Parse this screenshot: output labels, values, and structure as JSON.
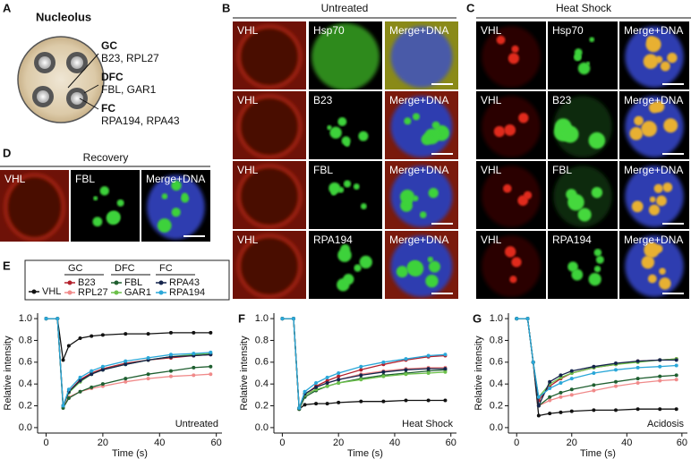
{
  "panel_a": {
    "label": "A",
    "title": "Nucleolus",
    "regions": [
      {
        "name": "GC",
        "proteins": "B23, RPL27"
      },
      {
        "name": "DFC",
        "proteins": "FBL, GAR1"
      },
      {
        "name": "FC",
        "proteins": "RPA194, RPA43"
      }
    ]
  },
  "panel_b": {
    "label": "B",
    "title": "Untreated",
    "rows": [
      [
        "VHL",
        "Hsp70",
        "Merge+DNA"
      ],
      [
        "VHL",
        "B23",
        "Merge+DNA"
      ],
      [
        "VHL",
        "FBL",
        "Merge+DNA"
      ],
      [
        "VHL",
        "RPA194",
        "Merge+DNA"
      ]
    ]
  },
  "panel_c": {
    "label": "C",
    "title": "Heat Shock",
    "rows": [
      [
        "VHL",
        "Hsp70",
        "Merge+DNA"
      ],
      [
        "VHL",
        "B23",
        "Merge+DNA"
      ],
      [
        "VHL",
        "FBL",
        "Merge+DNA"
      ],
      [
        "VHL",
        "RPA194",
        "Merge+DNA"
      ]
    ]
  },
  "panel_d": {
    "label": "D",
    "title": "Recovery",
    "rows": [
      [
        "VHL",
        "FBL",
        "Merge+DNA"
      ]
    ]
  },
  "legend_groups": [
    "GC",
    "DFC",
    "FC"
  ],
  "chart_data": [
    {
      "type": "line",
      "label": "E",
      "annotation": "Untreated",
      "xlabel": "Time (s)",
      "ylabel": "Relative intensity",
      "x": [
        0,
        4,
        6,
        8,
        12,
        16,
        20,
        28,
        36,
        44,
        52,
        58
      ],
      "xlim": [
        -3,
        62
      ],
      "xticks": [
        0,
        20,
        40,
        60
      ],
      "ylim": [
        -0.05,
        1.05
      ],
      "yticks": [
        {
          "value": 0,
          "label": "0.0"
        },
        0.2,
        0.4,
        0.6,
        0.8,
        {
          "value": 1,
          "label": "1.0"
        }
      ],
      "series": [
        {
          "name": "VHL",
          "color": "#111111",
          "values": [
            1,
            1,
            0.62,
            0.75,
            0.82,
            0.84,
            0.85,
            0.86,
            0.86,
            0.87,
            0.87,
            0.87
          ]
        },
        {
          "name": "B23",
          "color": "#b3202c",
          "values": [
            1,
            1,
            0.2,
            0.33,
            0.44,
            0.5,
            0.54,
            0.59,
            0.62,
            0.64,
            0.66,
            0.67
          ]
        },
        {
          "name": "RPL27",
          "color": "#f08a8a",
          "values": [
            1,
            1,
            0.2,
            0.28,
            0.33,
            0.36,
            0.38,
            0.42,
            0.45,
            0.47,
            0.48,
            0.49
          ]
        },
        {
          "name": "FBL",
          "color": "#1f5f30",
          "values": [
            1,
            1,
            0.18,
            0.27,
            0.33,
            0.37,
            0.4,
            0.45,
            0.49,
            0.52,
            0.55,
            0.56
          ]
        },
        {
          "name": "GAR1",
          "color": "#6cc04a",
          "values": [
            1,
            1,
            0.2,
            0.32,
            0.42,
            0.49,
            0.53,
            0.58,
            0.62,
            0.65,
            0.67,
            0.68
          ]
        },
        {
          "name": "RPA43",
          "color": "#15244c",
          "values": [
            1,
            1,
            0.2,
            0.33,
            0.43,
            0.49,
            0.53,
            0.58,
            0.62,
            0.65,
            0.66,
            0.67
          ]
        },
        {
          "name": "RPA194",
          "color": "#2aa7d8",
          "values": [
            1,
            1,
            0.2,
            0.35,
            0.46,
            0.52,
            0.56,
            0.61,
            0.64,
            0.67,
            0.68,
            0.69
          ]
        }
      ]
    },
    {
      "type": "line",
      "label": "F",
      "annotation": "Heat Shock",
      "xlabel": "Time (s)",
      "ylabel": "Relative intensity",
      "x": [
        0,
        4,
        6,
        8,
        12,
        16,
        20,
        28,
        36,
        44,
        52,
        58
      ],
      "xlim": [
        -3,
        62
      ],
      "xticks": [
        0,
        20,
        40,
        60
      ],
      "ylim": [
        -0.05,
        1.05
      ],
      "yticks": [
        {
          "value": 0,
          "label": "0.0"
        },
        0.2,
        0.4,
        0.6,
        0.8,
        {
          "value": 1,
          "label": "1.0"
        }
      ],
      "series": [
        {
          "name": "VHL",
          "color": "#111111",
          "values": [
            1,
            1,
            0.17,
            0.21,
            0.22,
            0.22,
            0.23,
            0.24,
            0.24,
            0.25,
            0.25,
            0.25
          ]
        },
        {
          "name": "B23",
          "color": "#b3202c",
          "values": [
            1,
            1,
            0.18,
            0.3,
            0.38,
            0.43,
            0.47,
            0.53,
            0.58,
            0.62,
            0.65,
            0.66
          ]
        },
        {
          "name": "RPL27",
          "color": "#f08a8a",
          "values": [
            1,
            1,
            0.18,
            0.3,
            0.37,
            0.41,
            0.44,
            0.49,
            0.52,
            0.54,
            0.55,
            0.55
          ]
        },
        {
          "name": "FBL",
          "color": "#1f5f30",
          "values": [
            1,
            1,
            0.17,
            0.28,
            0.34,
            0.38,
            0.41,
            0.45,
            0.48,
            0.5,
            0.52,
            0.53
          ]
        },
        {
          "name": "GAR1",
          "color": "#6cc04a",
          "values": [
            1,
            1,
            0.18,
            0.3,
            0.35,
            0.38,
            0.41,
            0.44,
            0.47,
            0.49,
            0.5,
            0.51
          ]
        },
        {
          "name": "RPA43",
          "color": "#15244c",
          "values": [
            1,
            1,
            0.18,
            0.31,
            0.37,
            0.41,
            0.44,
            0.48,
            0.51,
            0.53,
            0.54,
            0.54
          ]
        },
        {
          "name": "RPA194",
          "color": "#2aa7d8",
          "values": [
            1,
            1,
            0.18,
            0.33,
            0.41,
            0.46,
            0.5,
            0.56,
            0.6,
            0.63,
            0.66,
            0.67
          ]
        }
      ]
    },
    {
      "type": "line",
      "label": "G",
      "annotation": "Acidosis",
      "xlabel": "Time (s)",
      "ylabel": "Relative intensity",
      "x": [
        0,
        4,
        6,
        8,
        12,
        16,
        20,
        28,
        36,
        44,
        52,
        58
      ],
      "xlim": [
        -3,
        62
      ],
      "xticks": [
        0,
        20,
        40,
        60
      ],
      "ylim": [
        -0.05,
        1.05
      ],
      "yticks": [
        {
          "value": 0,
          "label": "0.0"
        },
        0.2,
        0.4,
        0.6,
        0.8,
        {
          "value": 1,
          "label": "1.0"
        }
      ],
      "series": [
        {
          "name": "VHL",
          "color": "#111111",
          "values": [
            1,
            1,
            0.6,
            0.11,
            0.13,
            0.14,
            0.15,
            0.16,
            0.16,
            0.17,
            0.17,
            0.17
          ]
        },
        {
          "name": "B23",
          "color": "#b3202c",
          "values": [
            1,
            1,
            0.6,
            0.25,
            0.38,
            0.45,
            0.5,
            0.55,
            0.58,
            0.61,
            0.62,
            0.63
          ]
        },
        {
          "name": "RPL27",
          "color": "#f08a8a",
          "values": [
            1,
            1,
            0.6,
            0.2,
            0.25,
            0.28,
            0.3,
            0.34,
            0.38,
            0.41,
            0.43,
            0.44
          ]
        },
        {
          "name": "FBL",
          "color": "#1f5f30",
          "values": [
            1,
            1,
            0.6,
            0.2,
            0.28,
            0.32,
            0.35,
            0.39,
            0.42,
            0.45,
            0.47,
            0.48
          ]
        },
        {
          "name": "GAR1",
          "color": "#6cc04a",
          "values": [
            1,
            1,
            0.6,
            0.28,
            0.4,
            0.46,
            0.5,
            0.55,
            0.58,
            0.6,
            0.62,
            0.63
          ]
        },
        {
          "name": "RPA43",
          "color": "#15244c",
          "values": [
            1,
            1,
            0.6,
            0.2,
            0.42,
            0.48,
            0.52,
            0.56,
            0.59,
            0.61,
            0.62,
            0.62
          ]
        },
        {
          "name": "RPA194",
          "color": "#2aa7d8",
          "values": [
            1,
            1,
            0.6,
            0.28,
            0.36,
            0.41,
            0.45,
            0.5,
            0.53,
            0.55,
            0.56,
            0.57
          ]
        }
      ]
    }
  ]
}
